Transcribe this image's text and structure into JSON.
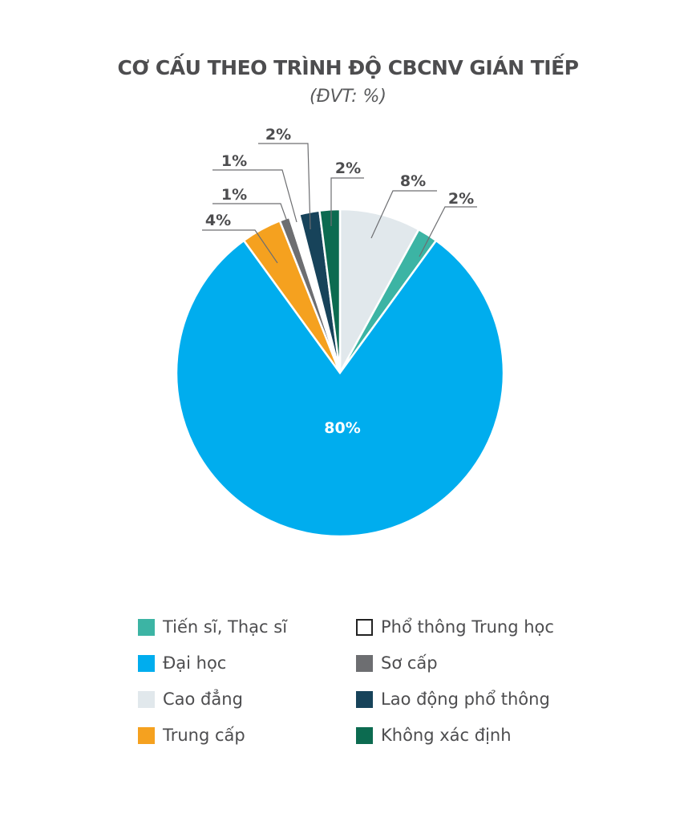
{
  "chart_data": {
    "type": "pie",
    "title": "CƠ CẤU THEO TRÌNH ĐỘ CBCNV GIÁN TIẾP",
    "subtitle": "(ĐVT: %)",
    "unit": "%",
    "slices": [
      {
        "label": "Cao đẳng",
        "value": 8,
        "display": "8%",
        "color": "#e1e8ec"
      },
      {
        "label": "Tiến sĩ, Thạc sĩ",
        "value": 2,
        "display": "2%",
        "color": "#3cb4a4"
      },
      {
        "label": "Đại học",
        "value": 80,
        "display": "80%",
        "color": "#00adee"
      },
      {
        "label": "Trung cấp",
        "value": 4,
        "display": "4%",
        "color": "#f5a11f"
      },
      {
        "label": "Sơ cấp",
        "value": 1,
        "display": "1%",
        "color": "#6d6e71"
      },
      {
        "label": "Phổ thông Trung học",
        "value": 1,
        "display": "1%",
        "color": "#ffffff"
      },
      {
        "label": "Lao động phổ thông",
        "value": 2,
        "display": "2%",
        "color": "#17435a"
      },
      {
        "label": "Không xác định",
        "value": 2,
        "display": "2%",
        "color": "#0c6b50"
      }
    ],
    "legend_order": [
      1,
      5,
      2,
      4,
      0,
      6,
      3,
      7
    ],
    "legend_placement": "bottom"
  }
}
